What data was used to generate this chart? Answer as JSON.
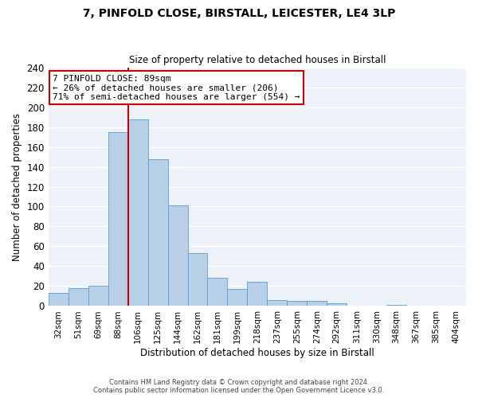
{
  "title1": "7, PINFOLD CLOSE, BIRSTALL, LEICESTER, LE4 3LP",
  "title2": "Size of property relative to detached houses in Birstall",
  "xlabel": "Distribution of detached houses by size in Birstall",
  "ylabel": "Number of detached properties",
  "bin_labels": [
    "32sqm",
    "51sqm",
    "69sqm",
    "88sqm",
    "106sqm",
    "125sqm",
    "144sqm",
    "162sqm",
    "181sqm",
    "199sqm",
    "218sqm",
    "237sqm",
    "255sqm",
    "274sqm",
    "292sqm",
    "311sqm",
    "330sqm",
    "348sqm",
    "367sqm",
    "385sqm",
    "404sqm"
  ],
  "bar_heights": [
    13,
    18,
    20,
    175,
    188,
    148,
    101,
    53,
    28,
    17,
    24,
    6,
    5,
    5,
    3,
    0,
    0,
    1,
    0,
    0,
    0
  ],
  "bar_color": "#b8cfe8",
  "bar_edge_color": "#5a9fd4",
  "background_color": "#edf2f9",
  "grid_color": "#ffffff",
  "vline_x_index": 4,
  "vline_color": "#cc0000",
  "annotation_title": "7 PINFOLD CLOSE: 89sqm",
  "annotation_line1": "← 26% of detached houses are smaller (206)",
  "annotation_line2": "71% of semi-detached houses are larger (554) →",
  "annotation_box_edge": "#cc0000",
  "footer_line1": "Contains HM Land Registry data © Crown copyright and database right 2024.",
  "footer_line2": "Contains public sector information licensed under the Open Government Licence v3.0.",
  "ylim": [
    0,
    240
  ],
  "yticks": [
    0,
    20,
    40,
    60,
    80,
    100,
    120,
    140,
    160,
    180,
    200,
    220,
    240
  ]
}
